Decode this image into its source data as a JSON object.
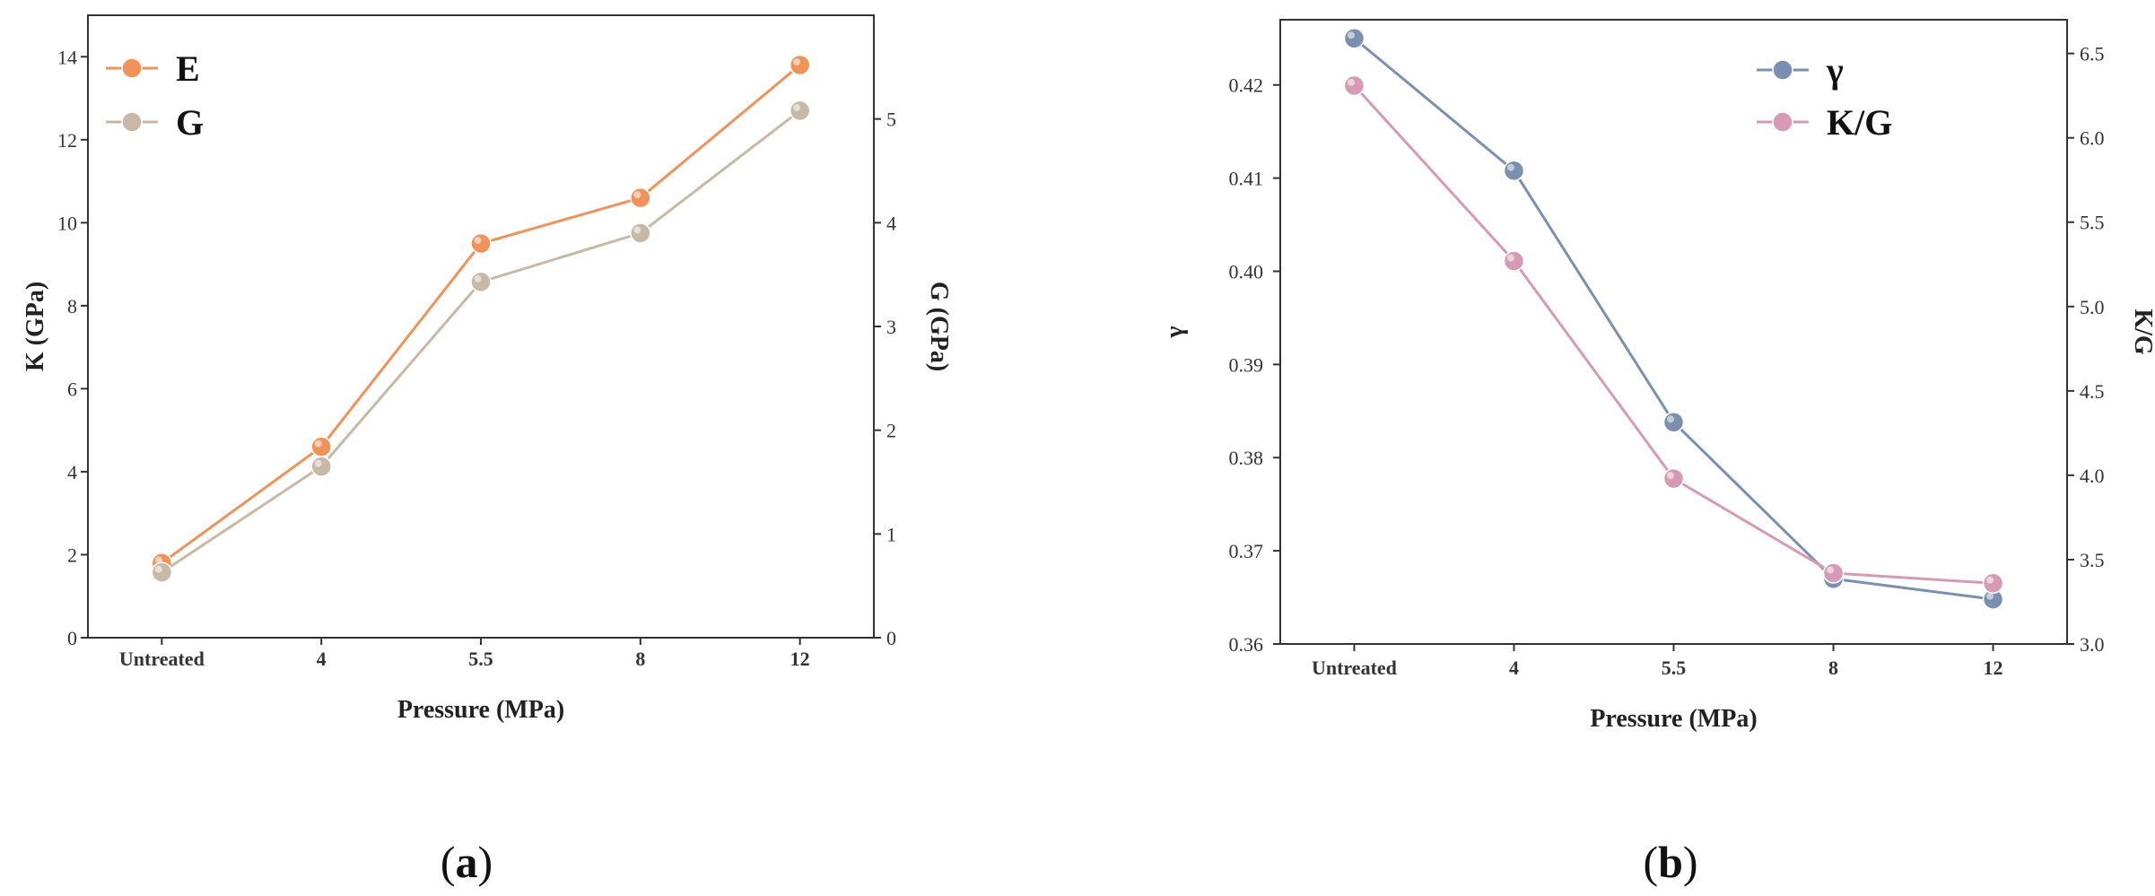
{
  "chart_data": [
    {
      "id": "a",
      "type": "line",
      "caption_letter": "a",
      "categories": [
        "Untreated",
        "4",
        "5.5",
        "8",
        "12"
      ],
      "xlabel": "Pressure (MPa)",
      "ylabel_left": "K (GPa)",
      "ylabel_right": "G (GPa)",
      "ylim_left": [
        0,
        15
      ],
      "yticks_left": [
        "0",
        "2",
        "4",
        "6",
        "8",
        "10",
        "12",
        "14"
      ],
      "ylim_right": [
        0,
        6
      ],
      "yticks_right": [
        "0",
        "1",
        "2",
        "3",
        "4",
        "5"
      ],
      "legend_position": "top-left",
      "series": [
        {
          "name": "E",
          "axis": "left",
          "color": "#F0935A",
          "values": [
            1.8,
            4.6,
            9.5,
            10.6,
            13.8
          ]
        },
        {
          "name": "G",
          "axis": "right",
          "color": "#C8B9A6",
          "values": [
            0.63,
            1.65,
            3.43,
            3.9,
            5.08
          ]
        }
      ]
    },
    {
      "id": "b",
      "type": "line",
      "caption_letter": "b",
      "categories": [
        "Untreated",
        "4",
        "5.5",
        "8",
        "12"
      ],
      "xlabel": "Pressure (MPa)",
      "ylabel_left": "γ",
      "ylabel_right": "K/G",
      "ylim_left": [
        0.36,
        0.427
      ],
      "yticks_left": [
        "0.36",
        "0.37",
        "0.38",
        "0.39",
        "0.40",
        "0.41",
        "0.42"
      ],
      "ylim_right": [
        3.0,
        6.7
      ],
      "yticks_right": [
        "3.0",
        "3.5",
        "4.0",
        "4.5",
        "5.0",
        "5.5",
        "6.0",
        "6.5"
      ],
      "legend_position": "top-right",
      "series": [
        {
          "name": "γ",
          "axis": "left",
          "color": "#7B8FB0",
          "values": [
            0.425,
            0.4108,
            0.3838,
            0.367,
            0.3648
          ]
        },
        {
          "name": "K/G",
          "axis": "right",
          "color": "#D79AB4",
          "values": [
            6.31,
            5.27,
            3.98,
            3.42,
            3.36
          ]
        }
      ]
    }
  ]
}
